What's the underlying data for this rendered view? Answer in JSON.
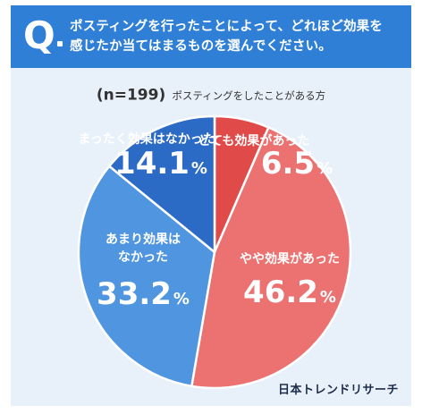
{
  "header": {
    "q_letter": "Q",
    "question_line1": "ポスティングを行ったことによって、どれほど効果を",
    "question_line2": "感じたか当てはまるものを選んでください。"
  },
  "sample": {
    "n_label": "(n=199)",
    "group_label": "ポスティングをしたことがある方"
  },
  "brand": "日本トレンドリサーチ",
  "chart_data": {
    "type": "pie",
    "unit": "%",
    "start": "12 o'clock, clockwise",
    "slices": [
      {
        "label": "とても効果があった",
        "value": 6.5,
        "color": "#e04a49",
        "text_color": "#ffffff"
      },
      {
        "label": "やや効果があった",
        "value": 46.2,
        "color": "#ec7272",
        "text_color": "#ffffff"
      },
      {
        "label": "あまり効果はなかった",
        "lines": [
          "あまり効果は",
          "なかった"
        ],
        "value": 33.2,
        "color": "#4f95e0",
        "text_color": "#ffffff"
      },
      {
        "label": "まったく効果はなかった",
        "value": 14.1,
        "color": "#2c6bc5",
        "text_color": "#ffffff"
      }
    ]
  }
}
